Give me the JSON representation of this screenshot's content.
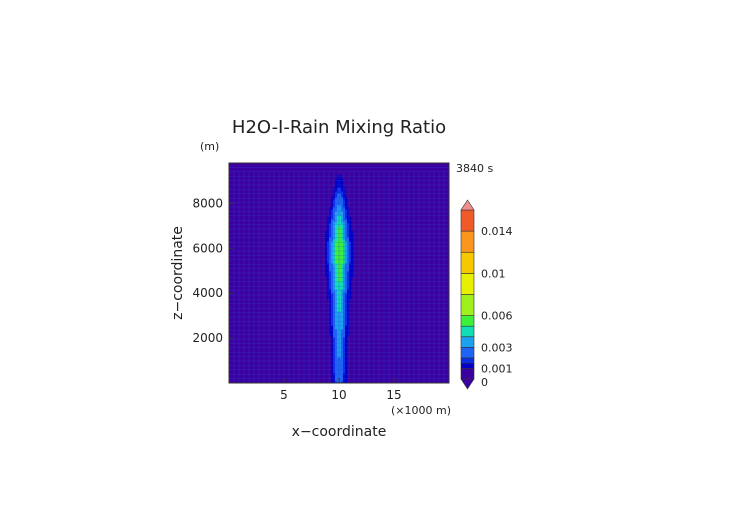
{
  "chart_data": {
    "type": "heatmap",
    "title": "H2O-I-Rain Mixing Ratio",
    "xlabel": "x−coordinate",
    "ylabel": "z−coordinate",
    "y_unit": "(m)",
    "x_unit": "(×1000 m)",
    "time_label": "3840 s",
    "xlim": [
      0,
      20
    ],
    "ylim": [
      0,
      9800
    ],
    "x_ticks": [
      {
        "value": 5,
        "label": "5"
      },
      {
        "value": 10,
        "label": "10"
      },
      {
        "value": 15,
        "label": "15"
      }
    ],
    "y_ticks": [
      {
        "value": 2000,
        "label": "2000"
      },
      {
        "value": 4000,
        "label": "4000"
      },
      {
        "value": 6000,
        "label": "6000"
      },
      {
        "value": 8000,
        "label": "8000"
      }
    ],
    "colorbar": {
      "min": 0,
      "max": 0.016,
      "levels": [
        {
          "value": 0,
          "color": "#3c00a0"
        },
        {
          "value": 0.001,
          "color": "#0000c8"
        },
        {
          "value": 0.0015,
          "color": "#0a2ee6"
        },
        {
          "value": 0.002,
          "color": "#1e64f5"
        },
        {
          "value": 0.003,
          "color": "#1ea0f0"
        },
        {
          "value": 0.004,
          "color": "#14dcb4"
        },
        {
          "value": 0.005,
          "color": "#3cf03c"
        },
        {
          "value": 0.006,
          "color": "#a0f01e"
        },
        {
          "value": 0.008,
          "color": "#e6f000"
        },
        {
          "value": 0.01,
          "color": "#f5c800"
        },
        {
          "value": 0.012,
          "color": "#fa961e"
        },
        {
          "value": 0.014,
          "color": "#f05a28"
        },
        {
          "value": 0.016,
          "color": "#f08c8c"
        }
      ],
      "tick_labels": [
        {
          "value": 0,
          "label": "0"
        },
        {
          "value": 0.001,
          "label": "0.001"
        },
        {
          "value": 0.003,
          "label": "0.003"
        },
        {
          "value": 0.006,
          "label": "0.006"
        },
        {
          "value": 0.01,
          "label": "0.01"
        },
        {
          "value": 0.014,
          "label": "0.014"
        }
      ]
    },
    "field": {
      "background_value": 0.0008,
      "column_center_x": 10,
      "column_profile_z": [
        0,
        1000,
        2000,
        3000,
        4000,
        5000,
        6000,
        7000,
        8000,
        8800,
        9300
      ],
      "column_peak": [
        0.0025,
        0.003,
        0.0035,
        0.004,
        0.0045,
        0.0055,
        0.006,
        0.005,
        0.003,
        0.0015,
        0.001
      ],
      "column_halfwidth_x": [
        0.45,
        0.45,
        0.5,
        0.55,
        0.6,
        0.7,
        0.75,
        0.65,
        0.5,
        0.35,
        0.25
      ]
    }
  }
}
